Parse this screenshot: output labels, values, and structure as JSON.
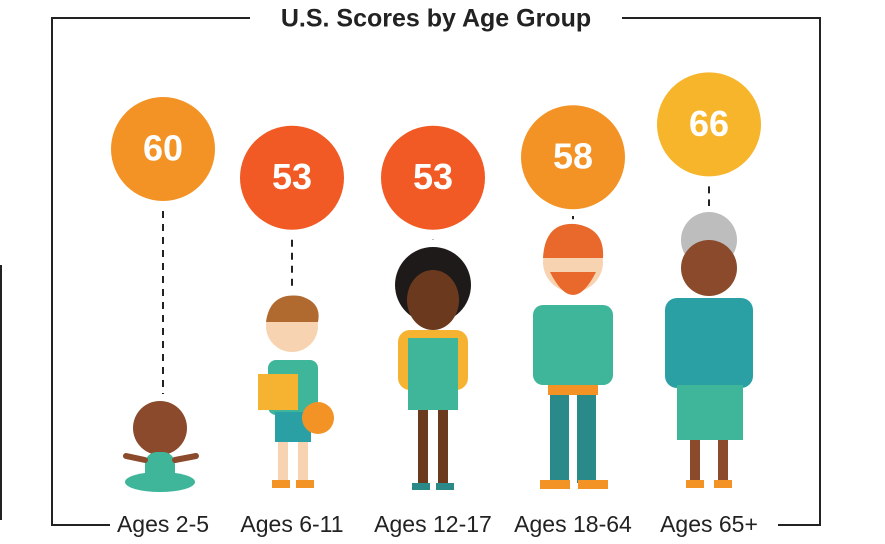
{
  "chart_data": {
    "type": "dot",
    "title": "U.S. Scores by Age Group",
    "categories": [
      "Ages 2-5",
      "Ages 6-11",
      "Ages 12-17",
      "Ages 18-64",
      "Ages 65+"
    ],
    "values": [
      60,
      53,
      53,
      58,
      66
    ],
    "colors": [
      "#f39325",
      "#f15a24",
      "#f15a24",
      "#f39325",
      "#f7b52b"
    ]
  }
}
